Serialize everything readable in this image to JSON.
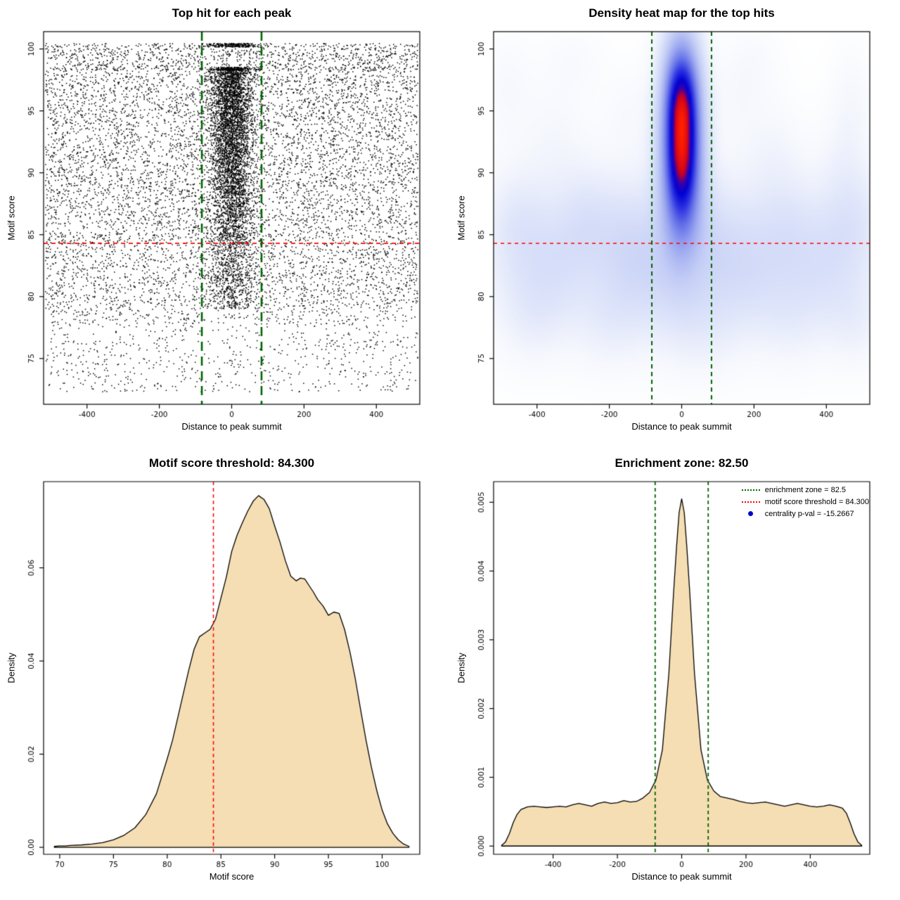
{
  "figure": {
    "background": "#ffffff",
    "motif_score_threshold": 84.3,
    "enrichment_zone": 82.5,
    "centrality_p_val": -15.2667
  },
  "chart_data": [
    {
      "name": "top-hit-for-each-peak",
      "type": "scatter",
      "title": "Top hit for each peak",
      "xlabel": "Distance to peak summit",
      "ylabel": "Motif score",
      "xlim": [
        -520,
        520
      ],
      "ylim": [
        71.3,
        101.4
      ],
      "xticks": [
        {
          "v": -400,
          "label": "-400"
        },
        {
          "v": -200,
          "label": "-200"
        },
        {
          "v": 0,
          "label": "0"
        },
        {
          "v": 200,
          "label": "200"
        },
        {
          "v": 400,
          "label": "400"
        }
      ],
      "yticks": [
        {
          "v": 75,
          "label": "75"
        },
        {
          "v": 80,
          "label": "80"
        },
        {
          "v": 85,
          "label": "85"
        },
        {
          "v": 90,
          "label": "90"
        },
        {
          "v": 95,
          "label": "95"
        },
        {
          "v": 100,
          "label": "100"
        }
      ],
      "hline": {
        "y": 84.3,
        "color": "#ff0000"
      },
      "vlines": {
        "x": [
          -82.5,
          82.5
        ],
        "color": "#006400"
      },
      "points": {
        "color": "#000000",
        "seed": 1337,
        "n_background": 9000,
        "x_range": [
          -515,
          515
        ],
        "background_score_range": [
          72.3,
          100.4
        ],
        "n_central_cluster": 4200,
        "cluster_x_sd": 30,
        "cluster_score_range": [
          84.5,
          98.4
        ],
        "n_cluster_low": 750,
        "max_score_row": 100.3,
        "second_score_row": 98.4
      }
    },
    {
      "name": "density-heat-map-for-top-hits",
      "type": "heatmap",
      "title": "Density heat map for the top hits",
      "xlabel": "Distance to peak summit",
      "ylabel": "Motif score",
      "xlim": [
        -520,
        520
      ],
      "ylim": [
        71.3,
        101.4
      ],
      "xticks": [
        {
          "v": -400,
          "label": "-400"
        },
        {
          "v": -200,
          "label": "-200"
        },
        {
          "v": 0,
          "label": "0"
        },
        {
          "v": 200,
          "label": "200"
        },
        {
          "v": 400,
          "label": "400"
        }
      ],
      "yticks": [
        {
          "v": 75,
          "label": "75"
        },
        {
          "v": 80,
          "label": "80"
        },
        {
          "v": 85,
          "label": "85"
        },
        {
          "v": 90,
          "label": "90"
        },
        {
          "v": 95,
          "label": "95"
        },
        {
          "v": 100,
          "label": "100"
        }
      ],
      "hline": {
        "y": 84.3,
        "color": "#ff0000"
      },
      "vlines": {
        "x": [
          -82.5,
          82.5
        ],
        "color": "#006400"
      },
      "kernels": [
        [
          0,
          93.2,
          34,
          4.6,
          0.9
        ],
        [
          0,
          95.2,
          26,
          2.0,
          0.6
        ],
        [
          0,
          91.2,
          26,
          2.4,
          0.6
        ],
        [
          0,
          92.8,
          46,
          6.4,
          0.42
        ],
        [
          0,
          97.9,
          28,
          1.8,
          0.22
        ],
        [
          0,
          87.4,
          32,
          2.6,
          0.24
        ],
        [
          0,
          83.5,
          480,
          5.0,
          0.13
        ],
        [
          -450,
          85.5,
          55,
          3.2,
          0.1
        ],
        [
          -350,
          82.5,
          60,
          3.5,
          0.09
        ],
        [
          -260,
          86.0,
          55,
          3.0,
          0.1
        ],
        [
          -150,
          84.0,
          55,
          3.5,
          0.11
        ],
        [
          -60,
          82.0,
          60,
          3.5,
          0.1
        ],
        [
          80,
          84.0,
          55,
          3.5,
          0.1
        ],
        [
          180,
          82.5,
          60,
          3.5,
          0.1
        ],
        [
          290,
          85.0,
          55,
          3.2,
          0.09
        ],
        [
          400,
          83.0,
          60,
          3.5,
          0.1
        ],
        [
          480,
          86.0,
          50,
          3.0,
          0.09
        ],
        [
          -420,
          78.5,
          60,
          2.8,
          0.07
        ],
        [
          -200,
          78.0,
          70,
          2.8,
          0.07
        ],
        [
          60,
          77.5,
          70,
          2.8,
          0.07
        ],
        [
          300,
          78.5,
          70,
          2.8,
          0.07
        ],
        [
          480,
          78.0,
          50,
          2.5,
          0.07
        ],
        [
          -480,
          97.0,
          50,
          3.0,
          0.05
        ],
        [
          -300,
          99.0,
          60,
          2.0,
          0.04
        ],
        [
          -350,
          93.0,
          60,
          3.0,
          0.05
        ],
        [
          250,
          92.0,
          60,
          3.0,
          0.05
        ],
        [
          450,
          91.0,
          50,
          3.0,
          0.05
        ],
        [
          200,
          99.0,
          50,
          2.0,
          0.04
        ],
        [
          470,
          96.0,
          40,
          3.0,
          0.05
        ],
        [
          -150,
          95.0,
          50,
          2.5,
          0.04
        ],
        [
          150,
          96.0,
          50,
          2.5,
          0.04
        ]
      ],
      "colormap": [
        [
          0.0,
          "#ffffff"
        ],
        [
          0.04,
          "#f5f7fd"
        ],
        [
          0.1,
          "#dfe5fa"
        ],
        [
          0.2,
          "#c0caf5"
        ],
        [
          0.32,
          "#97a3ef"
        ],
        [
          0.45,
          "#6370e8"
        ],
        [
          0.58,
          "#2b30e0"
        ],
        [
          0.7,
          "#0000d2"
        ],
        [
          0.79,
          "#3a00aa"
        ],
        [
          0.86,
          "#c80020"
        ],
        [
          1.0,
          "#ff1e00"
        ]
      ]
    },
    {
      "name": "motif-score-density",
      "type": "area",
      "title": "Motif score threshold: 84.300",
      "xlabel": "Motif score",
      "ylabel": "Density",
      "xlim": [
        68.5,
        103.5
      ],
      "ylim": [
        -0.0015,
        0.0785
      ],
      "xticks": [
        {
          "v": 70,
          "label": "70"
        },
        {
          "v": 75,
          "label": "75"
        },
        {
          "v": 80,
          "label": "80"
        },
        {
          "v": 85,
          "label": "85"
        },
        {
          "v": 90,
          "label": "90"
        },
        {
          "v": 95,
          "label": "95"
        },
        {
          "v": 100,
          "label": "100"
        }
      ],
      "yticks": [
        {
          "v": 0,
          "label": "0.00"
        },
        {
          "v": 0.02,
          "label": "0.02"
        },
        {
          "v": 0.04,
          "label": "0.04"
        },
        {
          "v": 0.06,
          "label": "0.06"
        }
      ],
      "vline": {
        "x": 84.3,
        "color": "#ff0000"
      },
      "fill": "#f5deb3",
      "x": [
        69.5,
        70,
        70.5,
        71,
        72,
        73,
        74,
        75,
        76,
        77,
        78,
        79,
        80,
        80.5,
        81,
        81.5,
        82,
        82.5,
        83,
        83.5,
        84,
        84.5,
        85,
        85.5,
        86,
        86.5,
        87,
        87.5,
        88,
        88.5,
        89,
        89.5,
        90,
        90.5,
        91,
        91.5,
        92,
        92.4,
        92.8,
        93.2,
        93.6,
        94,
        94.5,
        95,
        95.5,
        96,
        96.5,
        97,
        97.5,
        98,
        98.5,
        99,
        99.5,
        100,
        100.5,
        101,
        101.5,
        102,
        102.5
      ],
      "y": [
        0.0002,
        0.0003,
        0.0003,
        0.0004,
        0.0005,
        0.0007,
        0.001,
        0.0016,
        0.0026,
        0.0042,
        0.007,
        0.0115,
        0.019,
        0.023,
        0.028,
        0.033,
        0.038,
        0.0425,
        0.0452,
        0.046,
        0.0468,
        0.049,
        0.0535,
        0.058,
        0.0635,
        0.067,
        0.0697,
        0.0722,
        0.0743,
        0.0755,
        0.0747,
        0.0727,
        0.069,
        0.0655,
        0.0615,
        0.0582,
        0.0572,
        0.0578,
        0.0576,
        0.0562,
        0.0548,
        0.0532,
        0.0518,
        0.0498,
        0.0505,
        0.0502,
        0.0468,
        0.042,
        0.0362,
        0.0295,
        0.023,
        0.0172,
        0.0122,
        0.008,
        0.005,
        0.003,
        0.0016,
        0.0007,
        0.0002
      ]
    },
    {
      "name": "enrichment-zone-density",
      "type": "area",
      "title": "Enrichment zone: 82.50",
      "xlabel": "Distance to peak summit",
      "ylabel": "Density",
      "xlim": [
        -585,
        585
      ],
      "ylim": [
        -0.00012,
        0.0053
      ],
      "xticks": [
        {
          "v": -400,
          "label": "-400"
        },
        {
          "v": -200,
          "label": "-200"
        },
        {
          "v": 0,
          "label": "0"
        },
        {
          "v": 200,
          "label": "200"
        },
        {
          "v": 400,
          "label": "400"
        }
      ],
      "yticks": [
        {
          "v": 0,
          "label": "0.000"
        },
        {
          "v": 0.001,
          "label": "0.001"
        },
        {
          "v": 0.002,
          "label": "0.002"
        },
        {
          "v": 0.003,
          "label": "0.003"
        },
        {
          "v": 0.004,
          "label": "0.004"
        },
        {
          "v": 0.005,
          "label": "0.005"
        }
      ],
      "vlines": {
        "x": [
          -82.5,
          82.5
        ],
        "color": "#006400"
      },
      "fill": "#f5deb3",
      "x": [
        -560,
        -548,
        -536,
        -524,
        -512,
        -500,
        -480,
        -460,
        -440,
        -420,
        -400,
        -380,
        -360,
        -340,
        -320,
        -300,
        -280,
        -260,
        -240,
        -220,
        -200,
        -180,
        -160,
        -140,
        -120,
        -100,
        -80,
        -60,
        -40,
        -25,
        -16,
        -8,
        0,
        8,
        16,
        25,
        40,
        60,
        80,
        100,
        120,
        140,
        160,
        180,
        200,
        220,
        240,
        260,
        280,
        300,
        320,
        340,
        360,
        380,
        400,
        420,
        440,
        460,
        480,
        500,
        512,
        524,
        536,
        548,
        560
      ],
      "y": [
        1e-05,
        6e-05,
        0.00018,
        0.00034,
        0.00046,
        0.00053,
        0.00057,
        0.00058,
        0.00057,
        0.00056,
        0.00057,
        0.00058,
        0.00057,
        0.0006,
        0.00062,
        0.0006,
        0.00058,
        0.00062,
        0.00064,
        0.00062,
        0.00063,
        0.00066,
        0.00064,
        0.00065,
        0.0007,
        0.00078,
        0.00096,
        0.0014,
        0.0025,
        0.0037,
        0.00435,
        0.00485,
        0.00505,
        0.00485,
        0.00435,
        0.0037,
        0.0025,
        0.0014,
        0.00096,
        0.0008,
        0.00072,
        0.0007,
        0.00068,
        0.00065,
        0.00063,
        0.00062,
        0.00063,
        0.00064,
        0.00062,
        0.0006,
        0.00058,
        0.0006,
        0.00062,
        0.0006,
        0.00058,
        0.00057,
        0.00058,
        0.0006,
        0.00058,
        0.00055,
        0.00048,
        0.00034,
        0.00018,
        6e-05,
        1e-05
      ],
      "legend": [
        {
          "swatch": "dotted-line",
          "color": "#006400",
          "label": "enrichment zone = 82.5"
        },
        {
          "swatch": "dotted-line",
          "color": "#ff0000",
          "label": "motif score threshold = 84.300"
        },
        {
          "swatch": "dot",
          "color": "#0000cc",
          "label": "centrality p-val = -15.2667"
        }
      ]
    }
  ]
}
